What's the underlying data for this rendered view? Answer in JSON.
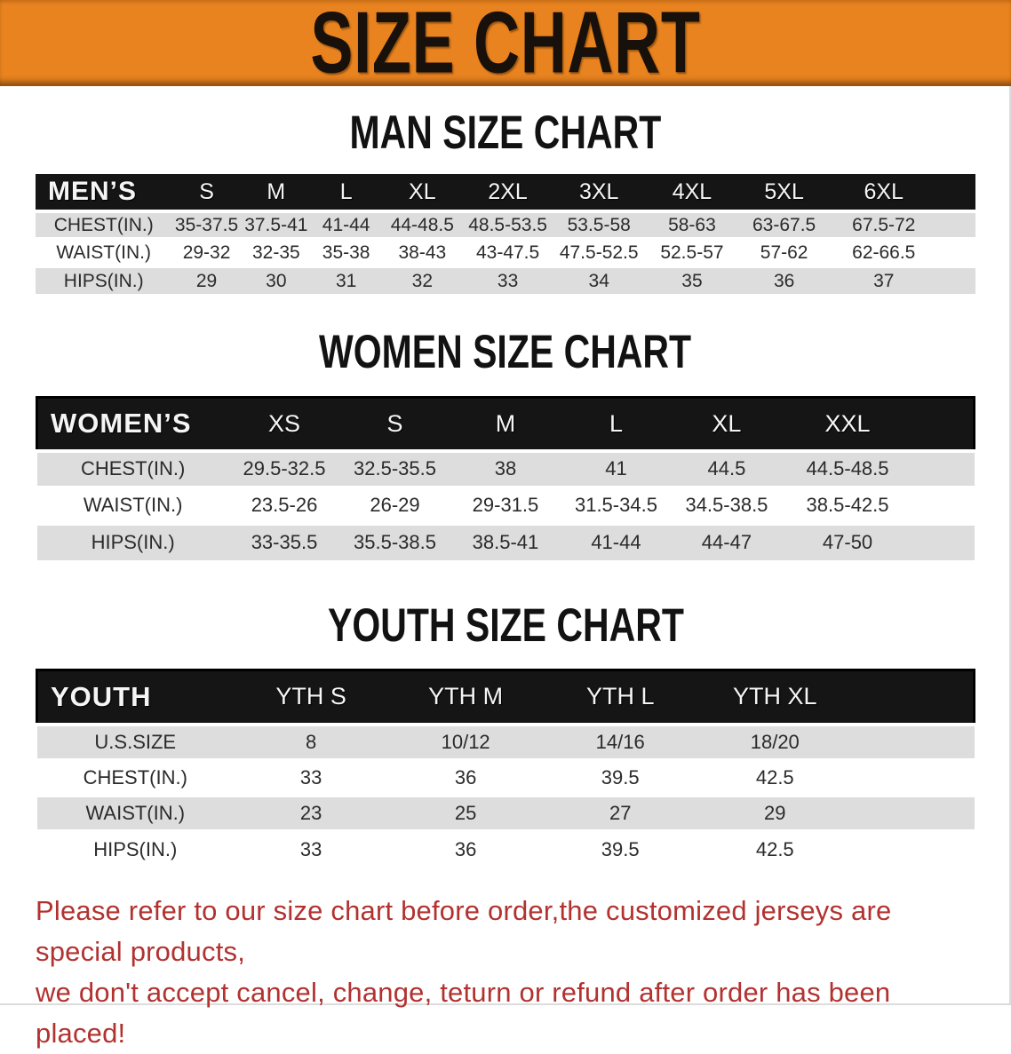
{
  "banner": {
    "title": "SIZE CHART"
  },
  "colors": {
    "banner_orange": "#E8831F",
    "header_black": "#151515",
    "stripe_gray": "#DDDDDD",
    "disclaimer_red": "#B23230"
  },
  "men_chart": {
    "title": "MAN SIZE CHART",
    "header": [
      "MEN’S",
      "S",
      "M",
      "L",
      "XL",
      "2XL",
      "3XL",
      "4XL",
      "5XL",
      "6XL"
    ],
    "rows": [
      {
        "label": "CHEST(IN.)",
        "values": [
          "35-37.5",
          "37.5-41",
          "41-44",
          "44-48.5",
          "48.5-53.5",
          "53.5-58",
          "58-63",
          "63-67.5",
          "67.5-72"
        ]
      },
      {
        "label": "WAIST(IN.)",
        "values": [
          "29-32",
          "32-35",
          "35-38",
          "38-43",
          "43-47.5",
          "47.5-52.5",
          "52.5-57",
          "57-62",
          "62-66.5"
        ]
      },
      {
        "label": "HIPS(IN.)",
        "values": [
          "29",
          "30",
          "31",
          "32",
          "33",
          "34",
          "35",
          "36",
          "37"
        ]
      }
    ]
  },
  "women_chart": {
    "title": "WOMEN SIZE CHART",
    "header": [
      "WOMEN’S",
      "XS",
      "S",
      "M",
      "L",
      "XL",
      "XXL"
    ],
    "rows": [
      {
        "label": "CHEST(IN.)",
        "values": [
          "29.5-32.5",
          "32.5-35.5",
          "38",
          "41",
          "44.5",
          "44.5-48.5"
        ]
      },
      {
        "label": "WAIST(IN.)",
        "values": [
          "23.5-26",
          "26-29",
          "29-31.5",
          "31.5-34.5",
          "34.5-38.5",
          "38.5-42.5"
        ]
      },
      {
        "label": "HIPS(IN.)",
        "values": [
          "33-35.5",
          "35.5-38.5",
          "38.5-41",
          "41-44",
          "44-47",
          "47-50"
        ]
      }
    ]
  },
  "youth_chart": {
    "title": "YOUTH SIZE CHART",
    "header": [
      "YOUTH",
      "YTH S",
      "YTH M",
      "YTH L",
      "YTH XL"
    ],
    "rows": [
      {
        "label": "U.S.SIZE",
        "values": [
          "8",
          "10/12",
          "14/16",
          "18/20"
        ]
      },
      {
        "label": "CHEST(IN.)",
        "values": [
          "33",
          "36",
          "39.5",
          "42.5"
        ]
      },
      {
        "label": "WAIST(IN.)",
        "values": [
          "23",
          "25",
          "27",
          "29"
        ]
      },
      {
        "label": "HIPS(IN.)",
        "values": [
          "33",
          "36",
          "39.5",
          "42.5"
        ]
      }
    ]
  },
  "disclaimer": {
    "line1": "Please refer to our size chart before order,the customized jerseys are special products,",
    "line2": "we don't accept cancel, change, teturn or refund after order has been placed!"
  }
}
